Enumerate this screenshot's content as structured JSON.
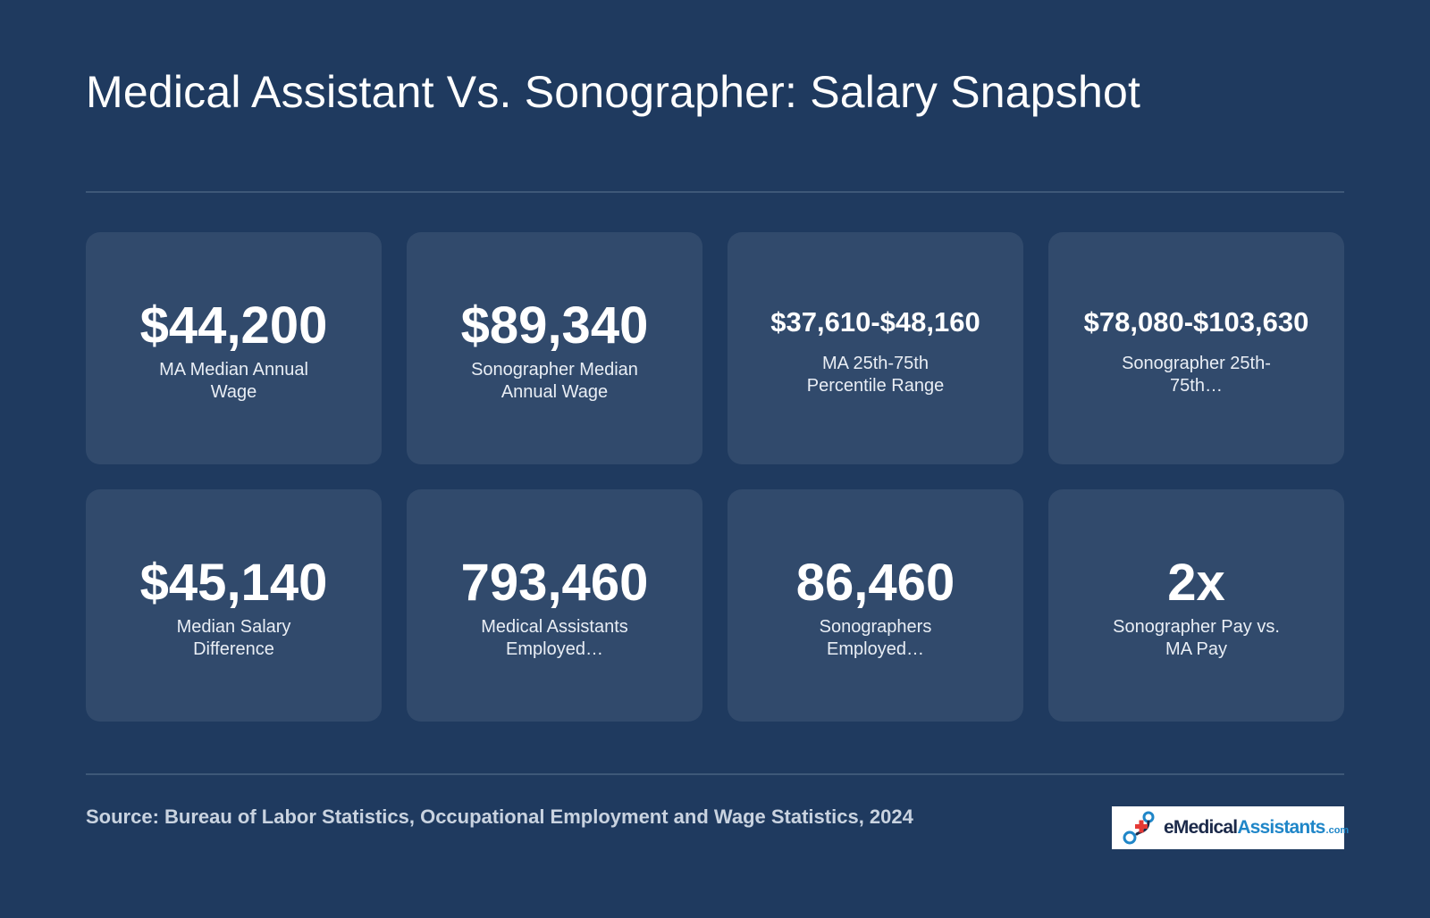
{
  "title": "Medical Assistant Vs. Sonographer: Salary Snapshot",
  "cards": [
    {
      "value": "$44,200",
      "label": "MA Median Annual Wage"
    },
    {
      "value": "$89,340",
      "label": "Sonographer Median Annual Wage"
    },
    {
      "value": "$37,610-$48,160",
      "label": "MA 25th-75th Percentile Range"
    },
    {
      "value": "$78,080-$103,630",
      "label": "Sonographer 25th-75th…"
    },
    {
      "value": "$45,140",
      "label": "Median Salary Difference"
    },
    {
      "value": "793,460",
      "label": "Medical Assistants Employed…"
    },
    {
      "value": "86,460",
      "label": "Sonographers Employed…"
    },
    {
      "value": "2x",
      "label": "Sonographer Pay vs. MA Pay"
    }
  ],
  "source": "Source: Bureau of Labor Statistics, Occupational Employment and Wage Statistics, 2024",
  "logo": {
    "prefix": "eMedical",
    "accent": "Assistants",
    "suffix": ".com"
  },
  "colors": {
    "background": "#1f3a5f",
    "card": "#314a6c",
    "divider": "#3e5878",
    "logo_accent": "#1f86c8",
    "logo_cross": "#e53935"
  }
}
